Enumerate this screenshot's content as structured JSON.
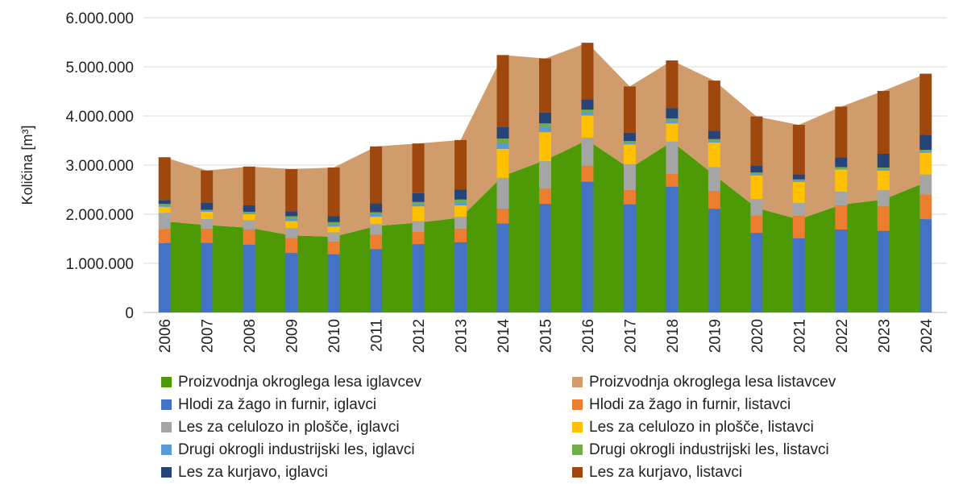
{
  "chart_data": {
    "type": "bar",
    "subtype": "stacked bar with stacked area",
    "ylabel": "Količina [m³]",
    "ylim": [
      0,
      6000000
    ],
    "yticks": [
      0,
      1000000,
      2000000,
      3000000,
      4000000,
      5000000,
      6000000
    ],
    "ytick_labels": [
      "0",
      "1.000.000",
      "2.000.000",
      "3.000.000",
      "4.000.000",
      "5.000.000",
      "6.000.000"
    ],
    "grid": true,
    "legend_position": "bottom",
    "categories": [
      "2006",
      "2007",
      "2008",
      "2009",
      "2010",
      "2011",
      "2012",
      "2013",
      "2014",
      "2015",
      "2016",
      "2017",
      "2018",
      "2019",
      "2020",
      "2021",
      "2022",
      "2023",
      "2024"
    ],
    "area_series": [
      {
        "name": "Proizvodnja okroglega lesa iglavcev",
        "color": "#4e9a06",
        "values": [
          1855000,
          1780000,
          1725000,
          1570000,
          1540000,
          1760000,
          1830000,
          1930000,
          2780000,
          3100000,
          3510000,
          2930000,
          3480000,
          2800000,
          2130000,
          1895000,
          2195000,
          2300000,
          2650000
        ]
      },
      {
        "name": "Proizvodnja okroglega lesa listavcev",
        "color": "#d09c6b",
        "values": [
          1305000,
          1110000,
          1245000,
          1350000,
          1410000,
          1620000,
          1610000,
          1580000,
          2460000,
          2070000,
          1980000,
          1670000,
          1650000,
          1920000,
          1860000,
          1925000,
          1995000,
          2210000,
          2210000
        ]
      }
    ],
    "bar_series": [
      {
        "name": "Hlodi za žago in furnir, iglavci",
        "color": "#4472c4",
        "values": [
          1415000,
          1415000,
          1380000,
          1210000,
          1185000,
          1290000,
          1390000,
          1430000,
          1810000,
          2210000,
          2660000,
          2200000,
          2560000,
          2110000,
          1620000,
          1510000,
          1690000,
          1660000,
          1900000
        ]
      },
      {
        "name": "Hlodi za žago in furnir, listavci",
        "color": "#ed7d31",
        "values": [
          285000,
          285000,
          310000,
          300000,
          255000,
          290000,
          250000,
          270000,
          300000,
          310000,
          320000,
          290000,
          260000,
          360000,
          350000,
          460000,
          490000,
          500000,
          500000
        ]
      },
      {
        "name": "Les za celulozo in plošče, iglavci",
        "color": "#a5a5a5",
        "values": [
          330000,
          205000,
          190000,
          210000,
          190000,
          220000,
          220000,
          250000,
          630000,
          560000,
          580000,
          530000,
          660000,
          490000,
          340000,
          260000,
          280000,
          330000,
          410000
        ]
      },
      {
        "name": "Les za celulozo in plošče, listavci",
        "color": "#ffc000",
        "values": [
          120000,
          145000,
          120000,
          140000,
          120000,
          150000,
          300000,
          230000,
          590000,
          590000,
          450000,
          400000,
          370000,
          500000,
          480000,
          430000,
          450000,
          400000,
          440000
        ]
      },
      {
        "name": "Drugi okrogli industrijski les, iglavci",
        "color": "#5b9bd5",
        "values": [
          30000,
          20000,
          25000,
          50000,
          45000,
          70000,
          40000,
          50000,
          110000,
          110000,
          60000,
          30000,
          50000,
          30000,
          30000,
          25000,
          25000,
          30000,
          30000
        ]
      },
      {
        "name": "Drugi okrogli industrijski les, listavci",
        "color": "#70ad47",
        "values": [
          30000,
          20000,
          25000,
          50000,
          45000,
          20000,
          50000,
          70000,
          100000,
          70000,
          60000,
          40000,
          50000,
          40000,
          30000,
          25000,
          25000,
          30000,
          30000
        ]
      },
      {
        "name": "Les za kurjavo, iglavci",
        "color": "#264478",
        "values": [
          80000,
          140000,
          130000,
          100000,
          120000,
          180000,
          180000,
          200000,
          230000,
          220000,
          210000,
          170000,
          210000,
          170000,
          140000,
          100000,
          200000,
          280000,
          310000
        ]
      },
      {
        "name": "Les za kurjavo, listavci",
        "color": "#9e480e",
        "values": [
          870000,
          660000,
          790000,
          860000,
          990000,
          1160000,
          1010000,
          1010000,
          1470000,
          1100000,
          1150000,
          940000,
          970000,
          1020000,
          1000000,
          1010000,
          1030000,
          1280000,
          1240000
        ]
      }
    ],
    "legend_order": [
      "Proizvodnja okroglega lesa iglavcev",
      "Proizvodnja okroglega lesa listavcev",
      "Hlodi za žago in furnir, iglavci",
      "Hlodi za žago in furnir, listavci",
      "Les za celulozo in plošče, iglavci",
      "Les za celulozo in plošče, listavci",
      "Drugi okrogli industrijski les, iglavci",
      "Drugi okrogli industrijski les, listavci",
      "Les za kurjavo, iglavci",
      "Les za kurjavo, listavci"
    ]
  }
}
